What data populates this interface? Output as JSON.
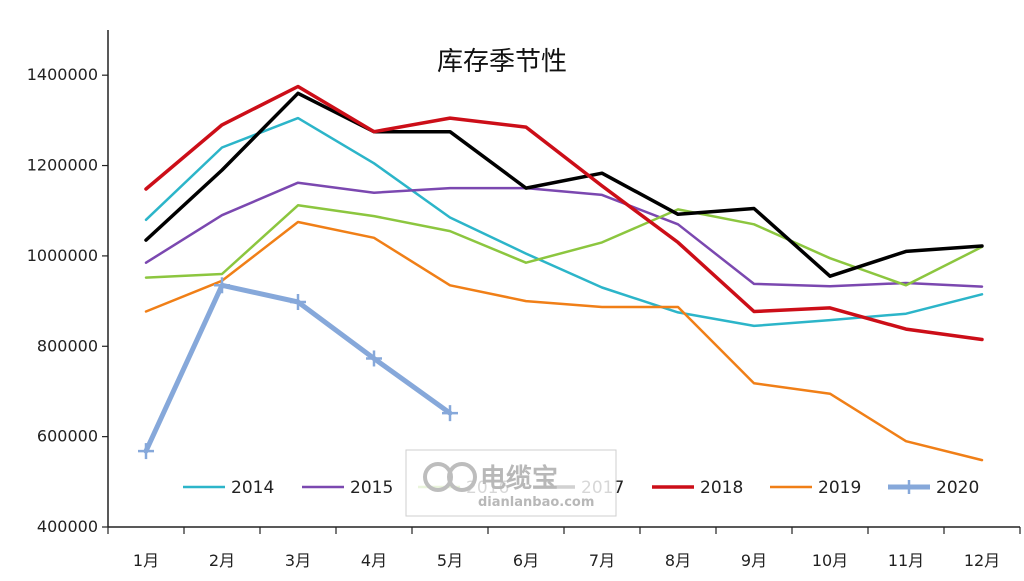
{
  "chart_data": {
    "type": "line",
    "title": "库存季节性",
    "categories": [
      "1月",
      "2月",
      "3月",
      "4月",
      "5月",
      "6月",
      "7月",
      "8月",
      "9月",
      "10月",
      "11月",
      "12月"
    ],
    "ylim": [
      400000,
      1500000
    ],
    "yticks": [
      400000,
      600000,
      800000,
      1000000,
      1200000,
      1400000
    ],
    "grid": false,
    "legend": "bottom",
    "series": [
      {
        "name": "2014",
        "color": "#2cb5c9",
        "width": 2.5,
        "marker": false,
        "values": [
          1080000,
          1240000,
          1305000,
          1205000,
          1085000,
          1005000,
          930000,
          875000,
          845000,
          858000,
          872000,
          915000
        ]
      },
      {
        "name": "2015",
        "color": "#7b48b0",
        "width": 2.5,
        "marker": false,
        "values": [
          985000,
          1090000,
          1162000,
          1140000,
          1150000,
          1150000,
          1135000,
          1070000,
          938000,
          933000,
          940000,
          932000
        ]
      },
      {
        "name": "2016",
        "color": "#8cc63f",
        "width": 2.5,
        "marker": false,
        "values": [
          952000,
          960000,
          1112000,
          1088000,
          1055000,
          985000,
          1030000,
          1103000,
          1070000,
          995000,
          935000,
          1020000
        ]
      },
      {
        "name": "2017",
        "color": "#000000",
        "width": 3.5,
        "marker": false,
        "values": [
          1035000,
          1190000,
          1360000,
          1275000,
          1275000,
          1150000,
          1183000,
          1092000,
          1105000,
          955000,
          1010000,
          1022000
        ]
      },
      {
        "name": "2018",
        "color": "#cc0e18",
        "width": 3.5,
        "marker": false,
        "values": [
          1148000,
          1290000,
          1375000,
          1275000,
          1305000,
          1285000,
          1155000,
          1030000,
          877000,
          885000,
          838000,
          815000
        ]
      },
      {
        "name": "2019",
        "color": "#f07f17",
        "width": 2.5,
        "marker": false,
        "values": [
          877000,
          945000,
          1075000,
          1040000,
          935000,
          900000,
          887000,
          887000,
          718000,
          695000,
          590000,
          548000
        ]
      },
      {
        "name": "2020",
        "color": "#86a8da",
        "width": 5,
        "marker": true,
        "values": [
          568000,
          935000,
          898000,
          773000,
          652000,
          null,
          null,
          null,
          null,
          null,
          null,
          null
        ]
      }
    ]
  },
  "watermark": {
    "brand": "电缆宝",
    "domain": "dianlanbao.com"
  }
}
